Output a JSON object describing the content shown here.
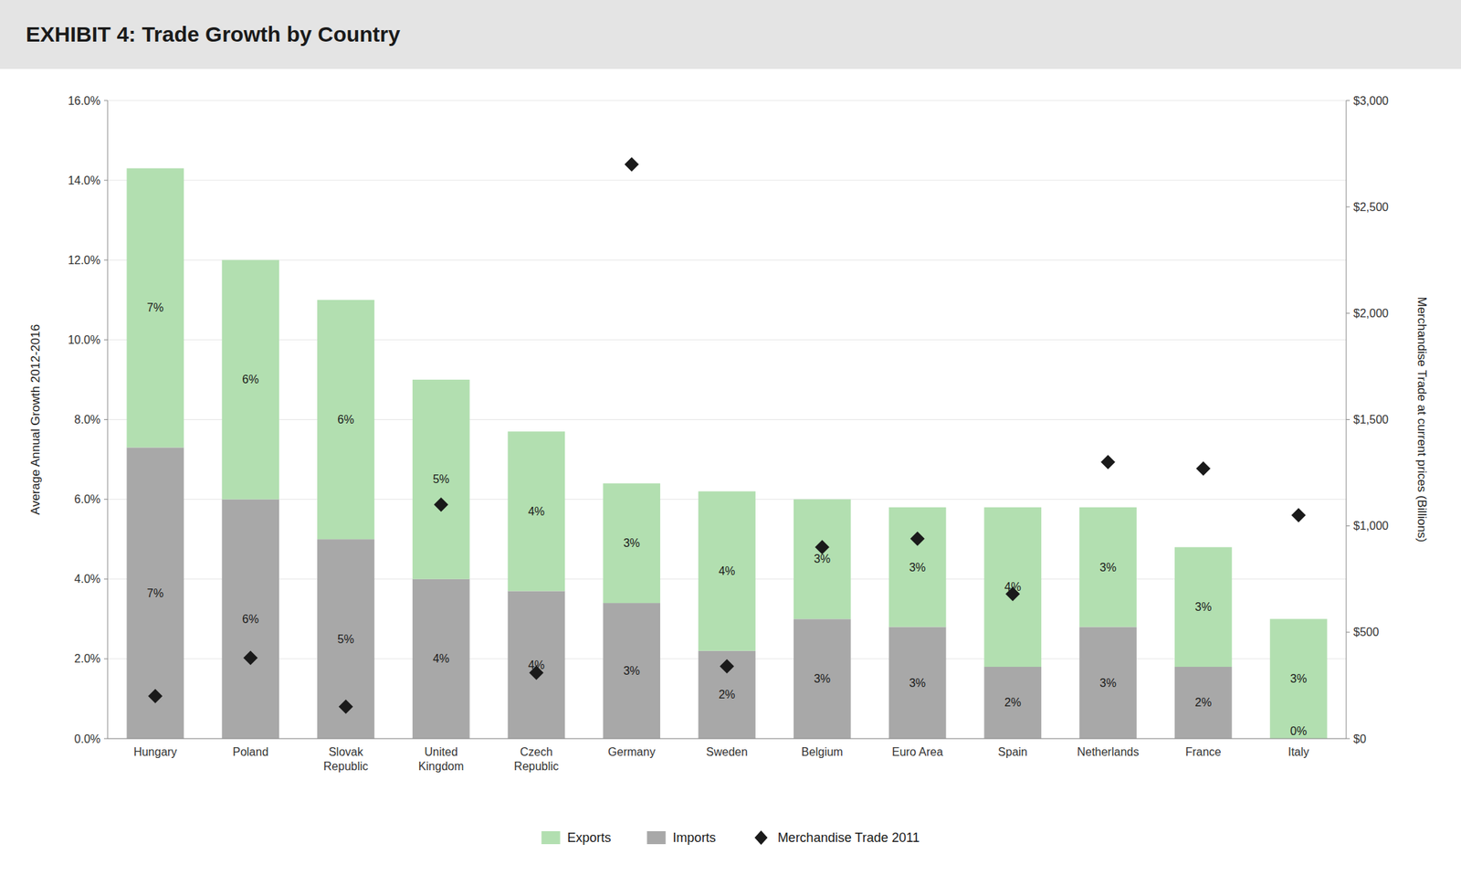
{
  "chart_data": {
    "type": "bar",
    "stacked": true,
    "title": "EXHIBIT 4: Trade Growth by Country",
    "ylabel": "Average Annual Growth 2012-2016",
    "y2label": "Merchandise Trade at current prices (Billions)",
    "categories": [
      "Hungary",
      "Poland",
      "Slovak\nRepublic",
      "United\nKingdom",
      "Czech\nRepublic",
      "Germany",
      "Sweden",
      "Belgium",
      "Euro Area",
      "Spain",
      "Netherlands",
      "France",
      "Italy"
    ],
    "series": [
      {
        "name": "Exports",
        "type": "bar",
        "color": "#b2dfb0",
        "values": [
          0.07,
          0.06,
          0.06,
          0.05,
          0.04,
          0.03,
          0.04,
          0.03,
          0.03,
          0.04,
          0.03,
          0.03,
          0.03
        ],
        "value_labels": [
          "7%",
          "6%",
          "6%",
          "5%",
          "4%",
          "3%",
          "4%",
          "3%",
          "3%",
          "4%",
          "3%",
          "3%",
          "3%"
        ]
      },
      {
        "name": "Imports",
        "type": "bar",
        "color": "#a8a8a8",
        "values": [
          0.073,
          0.06,
          0.05,
          0.04,
          0.037,
          0.034,
          0.022,
          0.03,
          0.028,
          0.018,
          0.028,
          0.018,
          0.0
        ],
        "value_labels": [
          "7%",
          "6%",
          "5%",
          "4%",
          "4%",
          "3%",
          "2%",
          "3%",
          "3%",
          "2%",
          "3%",
          "2%",
          "0%"
        ]
      },
      {
        "name": "Merchandise Trade 2011",
        "type": "scatter",
        "axis": "y2",
        "color": "#1a1a1a",
        "marker": "diamond",
        "values": [
          200,
          380,
          150,
          1100,
          310,
          2700,
          340,
          900,
          940,
          680,
          1300,
          1270,
          1050
        ]
      }
    ],
    "ylim": [
      0,
      0.16
    ],
    "yticks": [
      {
        "value": 0.0,
        "label": "0.0%"
      },
      {
        "value": 0.02,
        "label": "2.0%"
      },
      {
        "value": 0.04,
        "label": "4.0%"
      },
      {
        "value": 0.06,
        "label": "6.0%"
      },
      {
        "value": 0.08,
        "label": "8.0%"
      },
      {
        "value": 0.1,
        "label": "10.0%"
      },
      {
        "value": 0.12,
        "label": "12.0%"
      },
      {
        "value": 0.14,
        "label": "14.0%"
      },
      {
        "value": 0.16,
        "label": "16.0%"
      }
    ],
    "y2lim": [
      0,
      3000
    ],
    "y2ticks": [
      {
        "value": 0,
        "label": "$0"
      },
      {
        "value": 500,
        "label": "$500"
      },
      {
        "value": 1000,
        "label": "$1,000"
      },
      {
        "value": 1500,
        "label": "$1,500"
      },
      {
        "value": 2000,
        "label": "$2,000"
      },
      {
        "value": 2500,
        "label": "$2,500"
      },
      {
        "value": 3000,
        "label": "$3,000"
      }
    ],
    "grid": true,
    "data_labels": true,
    "legend": "bottom"
  }
}
